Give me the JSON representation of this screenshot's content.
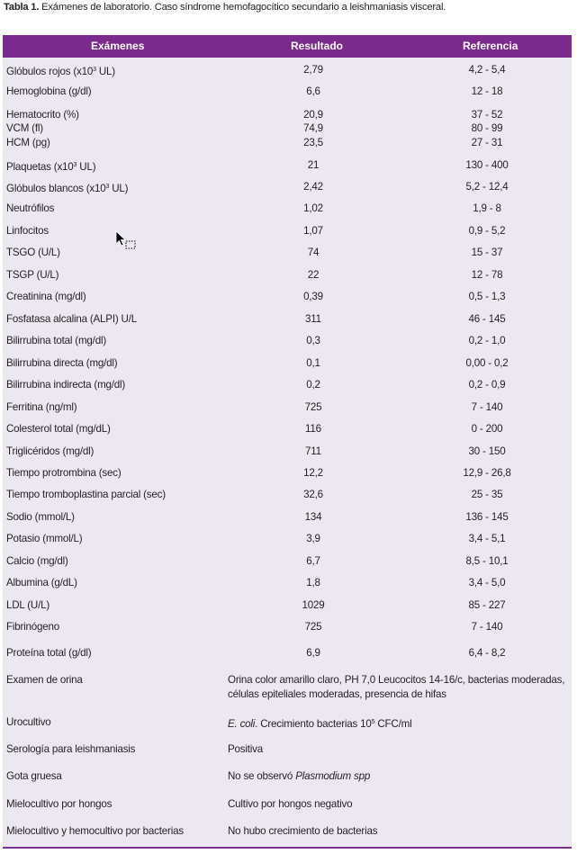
{
  "caption": {
    "label": "Tabla 1.",
    "text": " Exámenes de laboratorio. Caso síndrome hemofagocítico secundario a leishmaniasis visceral."
  },
  "header": {
    "exam": "Exámenes",
    "result": "Resultado",
    "reference": "Referencia"
  },
  "rows": [
    {
      "name_pre": "Glóbulos rojos (x10",
      "name_sup": "3",
      "name_post": " UL)",
      "result": "2,79",
      "ref": "4,2 - 5,4"
    },
    {
      "name": "Hemoglobina (g/dl)",
      "result": "6,6",
      "ref": "12 - 18"
    },
    {
      "name": "Hematocrito (%)",
      "result": "20,9",
      "ref": "37 - 52"
    },
    {
      "name": "VCM (fl)",
      "result": "74,9",
      "ref": "80 - 99"
    },
    {
      "name": "HCM (pg)",
      "result": "23,5",
      "ref": "27 - 31"
    },
    {
      "name_pre": "Plaquetas (x10",
      "name_sup": "3",
      "name_post": " UL)",
      "result": "21",
      "ref": "130 - 400"
    },
    {
      "name_pre": "Glóbulos blancos (x10",
      "name_sup": "3",
      "name_post": " UL)",
      "result": "2,42",
      "ref": "5,2 - 12,4"
    },
    {
      "name": "Neutrófilos",
      "result": "1,02",
      "ref": "1,9 - 8"
    },
    {
      "name": "Linfocitos",
      "result": "1,07",
      "ref": "0,9 - 5,2"
    },
    {
      "name": "TSGO (U/L)",
      "result": "74",
      "ref": "15 - 37"
    },
    {
      "name": "TSGP (U/L)",
      "result": "22",
      "ref": "12 - 78"
    },
    {
      "name": "Creatinina (mg/dl)",
      "result": "0,39",
      "ref": "0,5 - 1,3"
    },
    {
      "name": "Fosfatasa alcalina (ALPI) U/L",
      "result": "311",
      "ref": "46 - 145"
    },
    {
      "name": "Bilirrubina total (mg/dl)",
      "result": "0,3",
      "ref": "0,2 - 1,0"
    },
    {
      "name": "Bilirrubina directa (mg/dl)",
      "result": "0,1",
      "ref": "0,00 - 0,2"
    },
    {
      "name": "Bilirrubina indirecta (mg/dl)",
      "result": "0,2",
      "ref": "0,2 - 0,9"
    },
    {
      "name": "Ferritina (ng/ml)",
      "result": "725",
      "ref": "7 - 140"
    },
    {
      "name": "Colesterol total (mg/dL)",
      "result": "116",
      "ref": "0 - 200"
    },
    {
      "name": "Triglicéridos (mg/dl)",
      "result": "711",
      "ref": "30 - 150"
    },
    {
      "name": "Tiempo protrombina (sec)",
      "result": "12,2",
      "ref": "12,9 - 26,8"
    },
    {
      "name": "Tiempo tromboplastina parcial (sec)",
      "result": "32,6",
      "ref": "25 - 35"
    },
    {
      "name": "Sodio (mmol/L)",
      "result": "134",
      "ref": "136 - 145"
    },
    {
      "name": "Potasio (mmol/L)",
      "result": "3,9",
      "ref": "3,4 - 5,1"
    },
    {
      "name": "Calcio (mg/dl)",
      "result": "6,7",
      "ref": "8,5 - 10,1"
    },
    {
      "name": "Albumina (g/dL)",
      "result": "1,8",
      "ref": "3,4 - 5,0"
    },
    {
      "name": "LDL (U/L)",
      "result": "1029",
      "ref": "85 - 227"
    },
    {
      "name": "Fibrinógeno",
      "result": "725",
      "ref": "7 - 140"
    },
    {
      "name": "Proteína total (g/dl)",
      "result": "6,9",
      "ref": "6,4 - 8,2"
    }
  ],
  "wide_rows": [
    {
      "name": "Examen de orina",
      "value": "Orina color amarillo claro, PH 7,0 Leucocitos 14-16/c, bacterias moderadas, células epiteliales moderadas, presencia de hifas"
    },
    {
      "name": "Urocultivo",
      "value_italic": "E. coli",
      "value_mid": ". Crecimiento bacterias 10",
      "value_sup": "5",
      "value_post": " CFC/ml"
    },
    {
      "name": "Serología para leishmaniasis",
      "value": "Positiva"
    },
    {
      "name": "Gota gruesa",
      "value_pre": "No se observó ",
      "value_italic": "Plasmodium spp"
    },
    {
      "name": "Mielocultivo por hongos",
      "value": "Cultivo por hongos negativo"
    },
    {
      "name": "Mielocultivo y hemocultivo por bacterias",
      "value": "No hubo crecimiento de bacterias"
    }
  ],
  "cursor_icon": "mouse-pointer-with-drag-icon"
}
